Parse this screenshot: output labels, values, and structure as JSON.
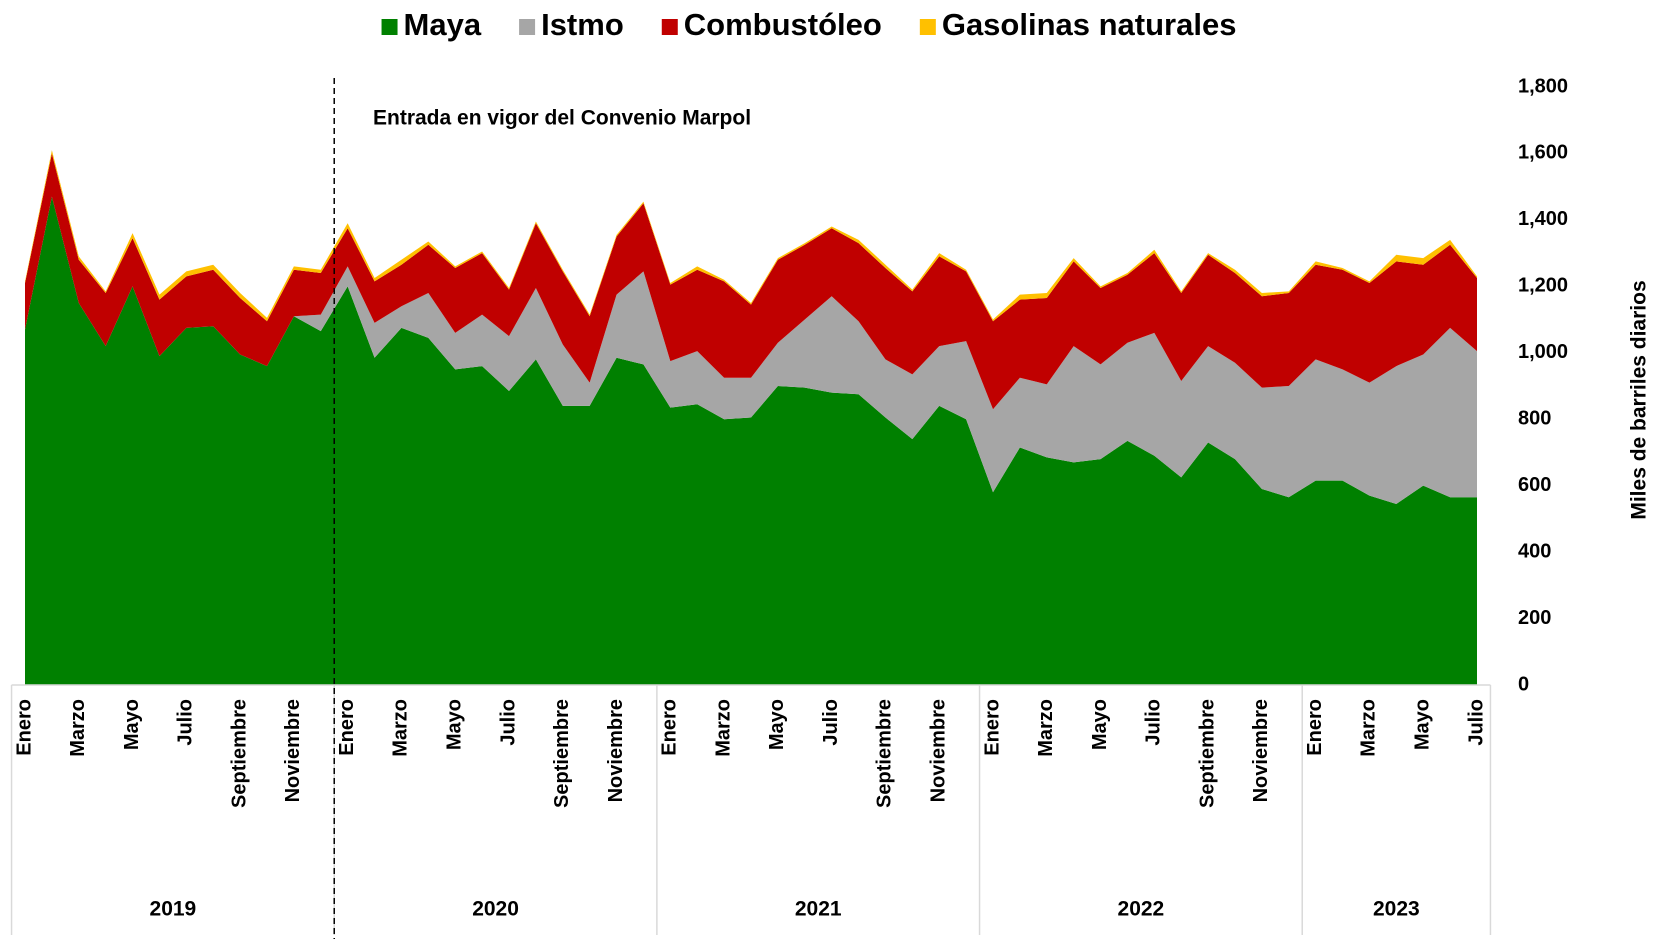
{
  "chart_data": {
    "type": "stacked_area",
    "annotation": "Entrada en vigor del Convenio Marpol",
    "y_axis_label": "Miles de barriles diarios",
    "categories": [
      "Enero",
      null,
      "Marzo",
      null,
      "Mayo",
      null,
      "Julio",
      null,
      "Septiembre",
      null,
      "Noviembre",
      null,
      "Enero",
      null,
      "Marzo",
      null,
      "Mayo",
      null,
      "Julio",
      null,
      "Septiembre",
      null,
      "Noviembre",
      null,
      "Enero",
      null,
      "Marzo",
      null,
      "Mayo",
      null,
      "Julio",
      null,
      "Septiembre",
      null,
      "Noviembre",
      null,
      "Enero",
      null,
      "Marzo",
      null,
      "Mayo",
      null,
      "Julio",
      null,
      "Septiembre",
      null,
      "Noviembre",
      null,
      "Enero",
      null,
      "Marzo",
      null,
      "Mayo",
      null,
      "Julio"
    ],
    "groups": [
      "2019",
      "2020",
      "2021",
      "2022",
      "2023"
    ],
    "series": [
      {
        "name": "Maya",
        "color": "#008000",
        "values": [
          1070,
          1470,
          1150,
          1020,
          1200,
          990,
          1075,
          1080,
          995,
          960,
          1110,
          1065,
          1200,
          985,
          1075,
          1045,
          950,
          960,
          885,
          980,
          840,
          840,
          985,
          965,
          835,
          845,
          800,
          805,
          900,
          895,
          880,
          875,
          805,
          740,
          840,
          800,
          580,
          715,
          685,
          670,
          680,
          735,
          690,
          625,
          730,
          680,
          590,
          565,
          615,
          615,
          570,
          545,
          600,
          565,
          565
        ]
      },
      {
        "name": "Istmo",
        "color": "#a6a6a6",
        "values": [
          0,
          0,
          0,
          0,
          0,
          0,
          0,
          0,
          0,
          0,
          0,
          50,
          60,
          105,
          65,
          135,
          110,
          155,
          165,
          215,
          185,
          70,
          190,
          280,
          140,
          160,
          125,
          120,
          130,
          205,
          290,
          220,
          175,
          195,
          180,
          235,
          250,
          210,
          220,
          350,
          285,
          295,
          370,
          290,
          290,
          290,
          305,
          335,
          365,
          335,
          340,
          415,
          395,
          510,
          440
        ]
      },
      {
        "name": "Combustóleo",
        "color": "#c00000",
        "values": [
          140,
          130,
          130,
          160,
          145,
          170,
          155,
          170,
          170,
          135,
          140,
          125,
          115,
          125,
          125,
          145,
          195,
          185,
          140,
          195,
          220,
          200,
          175,
          205,
          230,
          245,
          290,
          220,
          250,
          225,
          205,
          235,
          275,
          250,
          270,
          210,
          265,
          235,
          260,
          255,
          230,
          205,
          240,
          265,
          275,
          270,
          275,
          280,
          285,
          300,
          300,
          315,
          270,
          250,
          220
        ]
      },
      {
        "name": "Gasolinas naturales",
        "color": "#ffc000",
        "values": [
          5,
          10,
          10,
          5,
          15,
          15,
          15,
          15,
          15,
          10,
          10,
          10,
          15,
          10,
          15,
          10,
          5,
          5,
          5,
          5,
          5,
          5,
          5,
          5,
          5,
          10,
          5,
          5,
          5,
          5,
          5,
          10,
          10,
          5,
          10,
          5,
          5,
          15,
          15,
          10,
          5,
          5,
          10,
          5,
          5,
          10,
          10,
          5,
          10,
          5,
          5,
          20,
          20,
          15,
          5
        ]
      }
    ],
    "ylim": [
      0,
      1800
    ],
    "yticks": [
      0,
      200,
      400,
      600,
      800,
      {
        "value": 1000,
        "label": "1,000"
      },
      {
        "value": 1200,
        "label": "1,200"
      },
      {
        "value": 1400,
        "label": "1,400"
      },
      {
        "value": 1600,
        "label": "1,600"
      },
      {
        "value": 1800,
        "label": "1,800"
      }
    ],
    "y_axis_side": "right"
  }
}
